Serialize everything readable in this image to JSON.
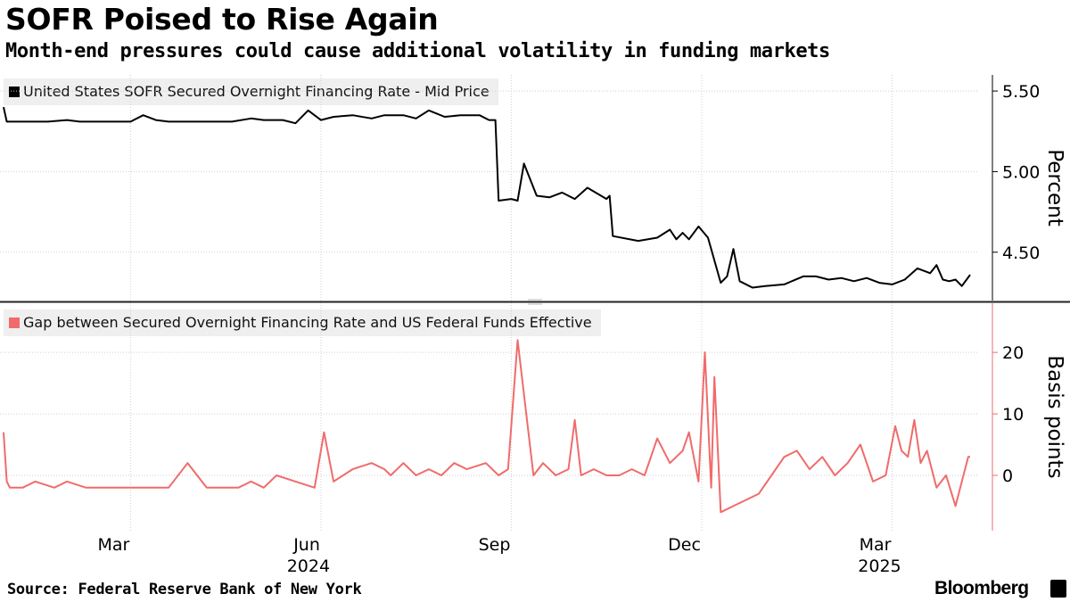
{
  "title": "SOFR Poised to Rise Again",
  "subtitle": "Month-end pressures could cause additional volatility in funding markets",
  "source": "Source: Federal Reserve Bank of New York",
  "brand": "Bloomberg",
  "brand_icon": "bloomberg-terminal-icon",
  "colors": {
    "sofr": "#000000",
    "gap": "#f06b6b",
    "grid": "#cfcfcf",
    "legend_bg": "#efefef"
  },
  "chart_data": [
    {
      "type": "line",
      "legend": "United States SOFR Secured Overnight Financing Rate - Mid Price",
      "ylabel": "Percent",
      "ylim": [
        4.2,
        5.6
      ],
      "yticks": [
        5.5,
        5.0,
        4.5
      ],
      "ytick_labels": [
        "5.50",
        "5.00",
        "4.50"
      ],
      "x_unit": "months since 2024-01-01",
      "xlim": [
        0.0,
        15.23
      ],
      "series": [
        {
          "name": "SOFR",
          "x": [
            0.0,
            0.05,
            0.25,
            0.7,
            1.0,
            1.2,
            1.5,
            1.7,
            2.0,
            2.2,
            2.4,
            2.6,
            3.0,
            3.3,
            3.6,
            3.9,
            4.1,
            4.4,
            4.6,
            4.8,
            5.0,
            5.2,
            5.5,
            5.8,
            6.0,
            6.3,
            6.5,
            6.7,
            6.95,
            7.2,
            7.5,
            7.65,
            7.75,
            7.8,
            8.0,
            8.1,
            8.2,
            8.4,
            8.6,
            8.8,
            9.0,
            9.2,
            9.5,
            9.55,
            9.6,
            10.0,
            10.3,
            10.5,
            10.6,
            10.7,
            10.8,
            10.95,
            11.1,
            11.3,
            11.4,
            11.5,
            11.6,
            11.8,
            12.0,
            12.3,
            12.6,
            12.8,
            13.0,
            13.2,
            13.4,
            13.6,
            13.8,
            14.0,
            14.2,
            14.4,
            14.6,
            14.7,
            14.8,
            14.9,
            15.0,
            15.1,
            15.23
          ],
          "values": [
            5.4,
            5.31,
            5.31,
            5.31,
            5.32,
            5.31,
            5.31,
            5.31,
            5.31,
            5.35,
            5.32,
            5.31,
            5.31,
            5.31,
            5.31,
            5.33,
            5.32,
            5.32,
            5.3,
            5.38,
            5.32,
            5.34,
            5.35,
            5.33,
            5.35,
            5.35,
            5.33,
            5.38,
            5.34,
            5.35,
            5.35,
            5.32,
            5.32,
            4.82,
            4.83,
            4.82,
            5.05,
            4.85,
            4.84,
            4.87,
            4.83,
            4.9,
            4.83,
            4.85,
            4.6,
            4.57,
            4.59,
            4.64,
            4.58,
            4.62,
            4.58,
            4.66,
            4.59,
            4.31,
            4.35,
            4.52,
            4.32,
            4.28,
            4.29,
            4.3,
            4.35,
            4.35,
            4.33,
            4.34,
            4.32,
            4.34,
            4.31,
            4.3,
            4.33,
            4.4,
            4.37,
            4.42,
            4.33,
            4.32,
            4.33,
            4.29,
            4.36
          ]
        }
      ]
    },
    {
      "type": "line",
      "legend": "Gap between Secured Overnight Financing Rate and US Federal Funds Effective",
      "ylabel": "Basis points",
      "ylim": [
        -9,
        28
      ],
      "yticks": [
        20,
        10,
        0
      ],
      "ytick_labels": [
        "20",
        "10",
        "0"
      ],
      "x_unit": "months since 2024-01-01",
      "xlim": [
        0.0,
        15.23
      ],
      "xtick_values": [
        2.0,
        5.0,
        8.0,
        11.0,
        14.0
      ],
      "xtick_labels": [
        "Mar",
        "Jun",
        "Sep",
        "Dec",
        "Mar"
      ],
      "year_tick_values": [
        5.0,
        14.0
      ],
      "year_labels": [
        "2024",
        "2025"
      ],
      "series": [
        {
          "name": "Gap",
          "x": [
            0.0,
            0.05,
            0.1,
            0.3,
            0.5,
            0.8,
            1.0,
            1.3,
            1.5,
            1.8,
            2.0,
            2.3,
            2.6,
            2.9,
            3.05,
            3.2,
            3.4,
            3.7,
            3.9,
            4.1,
            4.3,
            4.6,
            4.9,
            5.05,
            5.2,
            5.5,
            5.8,
            6.0,
            6.1,
            6.3,
            6.5,
            6.7,
            6.9,
            7.1,
            7.3,
            7.6,
            7.8,
            7.95,
            8.1,
            8.35,
            8.5,
            8.7,
            8.9,
            9.0,
            9.1,
            9.3,
            9.5,
            9.7,
            9.9,
            10.1,
            10.3,
            10.5,
            10.7,
            10.8,
            10.95,
            11.05,
            11.15,
            11.2,
            11.3,
            11.5,
            11.7,
            11.9,
            12.1,
            12.3,
            12.5,
            12.7,
            12.9,
            13.1,
            13.3,
            13.5,
            13.7,
            13.9,
            14.05,
            14.15,
            14.25,
            14.35,
            14.45,
            14.55,
            14.7,
            14.85,
            15.0,
            15.1,
            15.2,
            15.23
          ],
          "values": [
            7,
            -1,
            -2,
            -2,
            -1,
            -2,
            -1,
            -2,
            -2,
            -2,
            -2,
            -2,
            -2,
            2,
            0,
            -2,
            -2,
            -2,
            -1,
            -2,
            0,
            -1,
            -2,
            7,
            -1,
            1,
            2,
            1,
            0,
            2,
            0,
            1,
            0,
            2,
            1,
            2,
            0,
            1,
            22,
            0,
            2,
            0,
            1,
            9,
            0,
            1,
            0,
            0,
            1,
            0,
            6,
            2,
            4,
            7,
            -1,
            20,
            -2,
            16,
            -6,
            -5,
            -4,
            -3,
            0,
            3,
            4,
            1,
            3,
            0,
            2,
            5,
            -1,
            0,
            8,
            4,
            3,
            9,
            2,
            4,
            -2,
            0,
            -5,
            -1,
            3,
            3
          ]
        }
      ]
    }
  ]
}
